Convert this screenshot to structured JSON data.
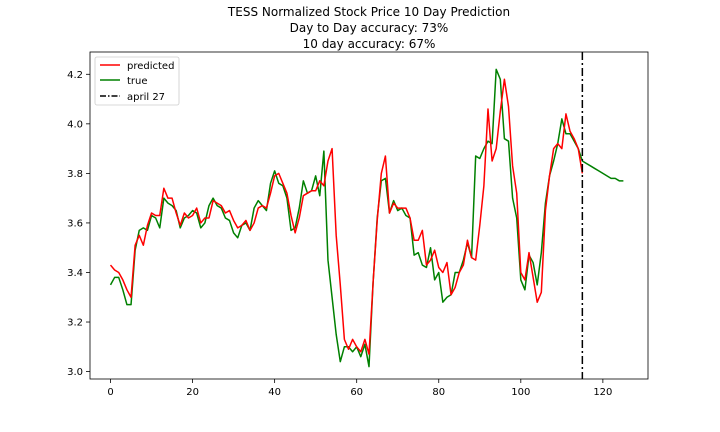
{
  "chart_data": {
    "type": "line",
    "title": "TESS Normalized Stock Price 10 Day Prediction",
    "subtitles": [
      "Day to Day accuracy: 73%",
      "10 day accuracy: 67%"
    ],
    "xlabel": "",
    "ylabel": "",
    "xlim": [
      -5,
      131
    ],
    "ylim": [
      2.97,
      4.29
    ],
    "xticks": [
      0,
      20,
      40,
      60,
      80,
      100,
      120
    ],
    "yticks": [
      3.0,
      3.2,
      3.4,
      3.6,
      3.8,
      4.0,
      4.2
    ],
    "ytick_labels": [
      "3.0",
      "3.2",
      "3.4",
      "3.6",
      "3.8",
      "4.0",
      "4.2"
    ],
    "grid": false,
    "legend_position": "top-left",
    "series": [
      {
        "name": "predicted",
        "color": "#ff0000",
        "x": [
          0,
          1,
          2,
          3,
          4,
          5,
          6,
          7,
          8,
          9,
          10,
          11,
          12,
          13,
          14,
          15,
          16,
          17,
          18,
          19,
          20,
          21,
          22,
          23,
          24,
          25,
          26,
          27,
          28,
          29,
          30,
          31,
          32,
          33,
          34,
          35,
          36,
          37,
          38,
          39,
          40,
          41,
          42,
          43,
          44,
          45,
          46,
          47,
          48,
          49,
          50,
          51,
          52,
          53,
          54,
          55,
          56,
          57,
          58,
          59,
          60,
          61,
          62,
          63,
          64,
          65,
          66,
          67,
          68,
          69,
          70,
          71,
          72,
          73,
          74,
          75,
          76,
          77,
          78,
          79,
          80,
          81,
          82,
          83,
          84,
          85,
          86,
          87,
          88,
          89,
          90,
          91,
          92,
          93,
          94,
          95,
          96,
          97,
          98,
          99,
          100,
          101,
          102,
          103,
          104,
          105,
          106,
          107,
          108,
          109,
          110,
          111,
          112,
          113,
          114,
          115
        ],
        "y": [
          3.43,
          3.41,
          3.4,
          3.37,
          3.33,
          3.3,
          3.51,
          3.55,
          3.51,
          3.59,
          3.64,
          3.63,
          3.63,
          3.74,
          3.7,
          3.7,
          3.64,
          3.59,
          3.64,
          3.62,
          3.63,
          3.66,
          3.6,
          3.62,
          3.62,
          3.69,
          3.68,
          3.67,
          3.64,
          3.65,
          3.61,
          3.58,
          3.59,
          3.61,
          3.57,
          3.6,
          3.66,
          3.67,
          3.66,
          3.72,
          3.79,
          3.8,
          3.76,
          3.72,
          3.63,
          3.56,
          3.62,
          3.71,
          3.72,
          3.73,
          3.73,
          3.77,
          3.75,
          3.85,
          3.9,
          3.55,
          3.35,
          3.13,
          3.09,
          3.13,
          3.1,
          3.08,
          3.13,
          3.07,
          3.36,
          3.61,
          3.8,
          3.87,
          3.64,
          3.68,
          3.66,
          3.66,
          3.66,
          3.62,
          3.53,
          3.53,
          3.57,
          3.43,
          3.45,
          3.49,
          3.42,
          3.4,
          3.44,
          3.31,
          3.34,
          3.4,
          3.43,
          3.53,
          3.46,
          3.45,
          3.59,
          3.75,
          4.06,
          3.85,
          3.9,
          4.05,
          4.18,
          4.07,
          3.83,
          3.72,
          3.4,
          3.37,
          3.48,
          3.38,
          3.28,
          3.32,
          3.65,
          3.79,
          3.9,
          3.92,
          3.9,
          4.04,
          3.97,
          3.94,
          3.9,
          3.8
        ]
      },
      {
        "name": "true",
        "color": "#008000",
        "x": [
          0,
          1,
          2,
          3,
          4,
          5,
          6,
          7,
          8,
          9,
          10,
          11,
          12,
          13,
          14,
          15,
          16,
          17,
          18,
          19,
          20,
          21,
          22,
          23,
          24,
          25,
          26,
          27,
          28,
          29,
          30,
          31,
          32,
          33,
          34,
          35,
          36,
          37,
          38,
          39,
          40,
          41,
          42,
          43,
          44,
          45,
          46,
          47,
          48,
          49,
          50,
          51,
          52,
          53,
          54,
          55,
          56,
          57,
          58,
          59,
          60,
          61,
          62,
          63,
          64,
          65,
          66,
          67,
          68,
          69,
          70,
          71,
          72,
          73,
          74,
          75,
          76,
          77,
          78,
          79,
          80,
          81,
          82,
          83,
          84,
          85,
          86,
          87,
          88,
          89,
          90,
          91,
          92,
          93,
          94,
          95,
          96,
          97,
          98,
          99,
          100,
          101,
          102,
          103,
          104,
          105,
          106,
          107,
          108,
          109,
          110,
          111,
          112,
          113,
          114,
          115,
          116,
          117,
          118,
          119,
          120,
          121,
          122,
          123,
          124,
          125
        ],
        "y": [
          3.35,
          3.38,
          3.38,
          3.33,
          3.27,
          3.27,
          3.49,
          3.57,
          3.58,
          3.57,
          3.63,
          3.62,
          3.58,
          3.7,
          3.68,
          3.67,
          3.65,
          3.58,
          3.62,
          3.63,
          3.65,
          3.64,
          3.58,
          3.6,
          3.67,
          3.7,
          3.67,
          3.66,
          3.62,
          3.61,
          3.56,
          3.54,
          3.59,
          3.6,
          3.57,
          3.66,
          3.69,
          3.67,
          3.65,
          3.76,
          3.81,
          3.76,
          3.75,
          3.7,
          3.57,
          3.58,
          3.66,
          3.77,
          3.72,
          3.73,
          3.79,
          3.71,
          3.89,
          3.45,
          3.3,
          3.15,
          3.04,
          3.1,
          3.1,
          3.08,
          3.1,
          3.06,
          3.11,
          3.02,
          3.36,
          3.62,
          3.77,
          3.78,
          3.64,
          3.69,
          3.65,
          3.66,
          3.63,
          3.62,
          3.47,
          3.48,
          3.43,
          3.42,
          3.5,
          3.37,
          3.4,
          3.28,
          3.3,
          3.31,
          3.4,
          3.4,
          3.45,
          3.52,
          3.46,
          3.87,
          3.86,
          3.9,
          3.93,
          3.92,
          4.22,
          4.18,
          3.94,
          3.93,
          3.7,
          3.62,
          3.37,
          3.33,
          3.47,
          3.44,
          3.35,
          3.48,
          3.68,
          3.79,
          3.85,
          3.92,
          4.02,
          3.96,
          3.96,
          3.93,
          3.9,
          3.85,
          3.84,
          3.83,
          3.82,
          3.81,
          3.8,
          3.79,
          3.78,
          3.78,
          3.77,
          3.77
        ]
      }
    ],
    "vline": {
      "name": "april 27",
      "x": 115,
      "color": "#000000",
      "style": "dashdot"
    }
  }
}
